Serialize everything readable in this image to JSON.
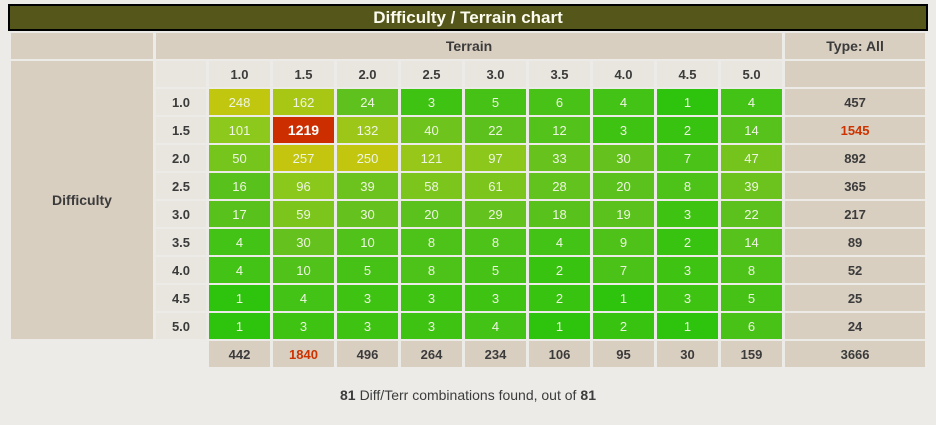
{
  "title_bar": {
    "title": "Difficulty / Terrain chart"
  },
  "table": {
    "terrain_label": "Terrain",
    "type_label": "Type: All",
    "difficulty_label": "Difficulty"
  },
  "footer": {
    "found_count": "81",
    "text": "Diff/Terr combinations found, out of",
    "total_count": "81"
  },
  "colors": {
    "title_bg": "#54561a",
    "title_text": "#fbfbef",
    "page_bg": "#ecebe7",
    "cell_beige": "#d9cfc1",
    "cell_light": "#e8e6de",
    "text_dark": "#3b3b3b",
    "heat_text": "#eef6e2",
    "highlight_red": "#cc3300"
  },
  "chart_data": {
    "type": "heatmap",
    "title": "Difficulty / Terrain chart",
    "xlabel": "Terrain",
    "ylabel": "Difficulty",
    "type_filter": "All",
    "columns": [
      "1.0",
      "1.5",
      "2.0",
      "2.5",
      "3.0",
      "3.5",
      "4.0",
      "4.5",
      "5.0"
    ],
    "rows": [
      "1.0",
      "1.5",
      "2.0",
      "2.5",
      "3.0",
      "3.5",
      "4.0",
      "4.5",
      "5.0"
    ],
    "values": [
      [
        248,
        162,
        24,
        3,
        5,
        6,
        4,
        1,
        4
      ],
      [
        101,
        1219,
        132,
        40,
        22,
        12,
        3,
        2,
        14
      ],
      [
        50,
        257,
        250,
        121,
        97,
        33,
        30,
        7,
        47
      ],
      [
        16,
        96,
        39,
        58,
        61,
        28,
        20,
        8,
        39
      ],
      [
        17,
        59,
        30,
        20,
        29,
        18,
        19,
        3,
        22
      ],
      [
        4,
        30,
        10,
        8,
        8,
        4,
        9,
        2,
        14
      ],
      [
        4,
        10,
        5,
        8,
        5,
        2,
        7,
        3,
        8
      ],
      [
        1,
        4,
        3,
        3,
        3,
        2,
        1,
        3,
        5
      ],
      [
        1,
        3,
        3,
        3,
        4,
        1,
        2,
        1,
        6
      ]
    ],
    "row_totals": [
      457,
      1545,
      892,
      365,
      217,
      89,
      52,
      25,
      24
    ],
    "col_totals": [
      442,
      1840,
      496,
      264,
      234,
      106,
      95,
      30,
      159
    ],
    "grand_total": 3666,
    "max_value": 1219,
    "highlight_row_total_index": 1,
    "highlight_col_total_index": 1,
    "color_scale": {
      "scale": "log",
      "stops": [
        [
          0.0,
          "#2ec40e"
        ],
        [
          0.45,
          "#5ec11e"
        ],
        [
          0.65,
          "#8dc81c"
        ],
        [
          0.78,
          "#c3c60e"
        ],
        [
          1.0,
          "#cc2e00"
        ]
      ]
    }
  }
}
